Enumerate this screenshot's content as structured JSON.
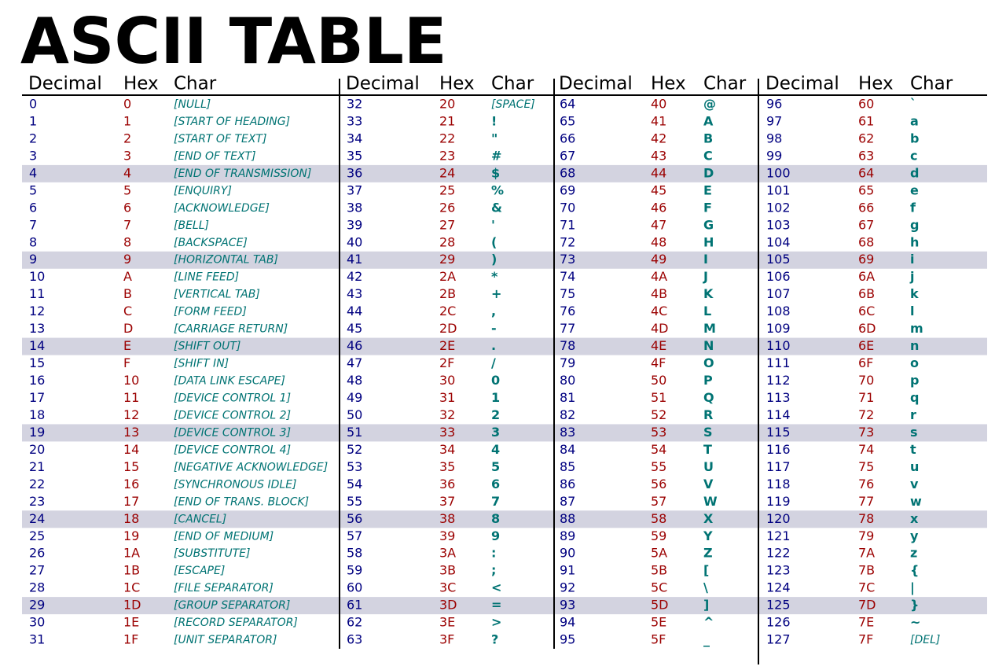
{
  "title": "ASCII TABLE",
  "groups": [
    {
      "headers": [
        "Decimal",
        "Hex",
        "Char"
      ],
      "rows": [
        [
          "0",
          "0",
          "[NULL]"
        ],
        [
          "1",
          "1",
          "[START OF HEADING]"
        ],
        [
          "2",
          "2",
          "[START OF TEXT]"
        ],
        [
          "3",
          "3",
          "[END OF TEXT]"
        ],
        [
          "4",
          "4",
          "[END OF TRANSMISSION]"
        ],
        [
          "5",
          "5",
          "[ENQUIRY]"
        ],
        [
          "6",
          "6",
          "[ACKNOWLEDGE]"
        ],
        [
          "7",
          "7",
          "[BELL]"
        ],
        [
          "8",
          "8",
          "[BACKSPACE]"
        ],
        [
          "9",
          "9",
          "[HORIZONTAL TAB]"
        ],
        [
          "10",
          "A",
          "[LINE FEED]"
        ],
        [
          "11",
          "B",
          "[VERTICAL TAB]"
        ],
        [
          "12",
          "C",
          "[FORM FEED]"
        ],
        [
          "13",
          "D",
          "[CARRIAGE RETURN]"
        ],
        [
          "14",
          "E",
          "[SHIFT OUT]"
        ],
        [
          "15",
          "F",
          "[SHIFT IN]"
        ],
        [
          "16",
          "10",
          "[DATA LINK ESCAPE]"
        ],
        [
          "17",
          "11",
          "[DEVICE CONTROL 1]"
        ],
        [
          "18",
          "12",
          "[DEVICE CONTROL 2]"
        ],
        [
          "19",
          "13",
          "[DEVICE CONTROL 3]"
        ],
        [
          "20",
          "14",
          "[DEVICE CONTROL 4]"
        ],
        [
          "21",
          "15",
          "[NEGATIVE ACKNOWLEDGE]"
        ],
        [
          "22",
          "16",
          "[SYNCHRONOUS IDLE]"
        ],
        [
          "23",
          "17",
          "[END OF TRANS. BLOCK]"
        ],
        [
          "24",
          "18",
          "[CANCEL]"
        ],
        [
          "25",
          "19",
          "[END OF MEDIUM]"
        ],
        [
          "26",
          "1A",
          "[SUBSTITUTE]"
        ],
        [
          "27",
          "1B",
          "[ESCAPE]"
        ],
        [
          "28",
          "1C",
          "[FILE SEPARATOR]"
        ],
        [
          "29",
          "1D",
          "[GROUP SEPARATOR]"
        ],
        [
          "30",
          "1E",
          "[RECORD SEPARATOR]"
        ],
        [
          "31",
          "1F",
          "[UNIT SEPARATOR]"
        ]
      ]
    },
    {
      "headers": [
        "Decimal",
        "Hex",
        "Char"
      ],
      "rows": [
        [
          "32",
          "20",
          "[SPACE]"
        ],
        [
          "33",
          "21",
          "!"
        ],
        [
          "34",
          "22",
          "\""
        ],
        [
          "35",
          "23",
          "#"
        ],
        [
          "36",
          "24",
          "$"
        ],
        [
          "37",
          "25",
          "%"
        ],
        [
          "38",
          "26",
          "&"
        ],
        [
          "39",
          "27",
          "'"
        ],
        [
          "40",
          "28",
          "("
        ],
        [
          "41",
          "29",
          ")"
        ],
        [
          "42",
          "2A",
          "*"
        ],
        [
          "43",
          "2B",
          "+"
        ],
        [
          "44",
          "2C",
          ","
        ],
        [
          "45",
          "2D",
          "-"
        ],
        [
          "46",
          "2E",
          "."
        ],
        [
          "47",
          "2F",
          "/"
        ],
        [
          "48",
          "30",
          "0"
        ],
        [
          "49",
          "31",
          "1"
        ],
        [
          "50",
          "32",
          "2"
        ],
        [
          "51",
          "33",
          "3"
        ],
        [
          "52",
          "34",
          "4"
        ],
        [
          "53",
          "35",
          "5"
        ],
        [
          "54",
          "36",
          "6"
        ],
        [
          "55",
          "37",
          "7"
        ],
        [
          "56",
          "38",
          "8"
        ],
        [
          "57",
          "39",
          "9"
        ],
        [
          "58",
          "3A",
          ":"
        ],
        [
          "59",
          "3B",
          ";"
        ],
        [
          "60",
          "3C",
          "<"
        ],
        [
          "61",
          "3D",
          "="
        ],
        [
          "62",
          "3E",
          ">"
        ],
        [
          "63",
          "3F",
          "?"
        ]
      ]
    },
    {
      "headers": [
        "Decimal",
        "Hex",
        "Char"
      ],
      "rows": [
        [
          "64",
          "40",
          "@"
        ],
        [
          "65",
          "41",
          "A"
        ],
        [
          "66",
          "42",
          "B"
        ],
        [
          "67",
          "43",
          "C"
        ],
        [
          "68",
          "44",
          "D"
        ],
        [
          "69",
          "45",
          "E"
        ],
        [
          "70",
          "46",
          "F"
        ],
        [
          "71",
          "47",
          "G"
        ],
        [
          "72",
          "48",
          "H"
        ],
        [
          "73",
          "49",
          "I"
        ],
        [
          "74",
          "4A",
          "J"
        ],
        [
          "75",
          "4B",
          "K"
        ],
        [
          "76",
          "4C",
          "L"
        ],
        [
          "77",
          "4D",
          "M"
        ],
        [
          "78",
          "4E",
          "N"
        ],
        [
          "79",
          "4F",
          "O"
        ],
        [
          "80",
          "50",
          "P"
        ],
        [
          "81",
          "51",
          "Q"
        ],
        [
          "82",
          "52",
          "R"
        ],
        [
          "83",
          "53",
          "S"
        ],
        [
          "84",
          "54",
          "T"
        ],
        [
          "85",
          "55",
          "U"
        ],
        [
          "86",
          "56",
          "V"
        ],
        [
          "87",
          "57",
          "W"
        ],
        [
          "88",
          "58",
          "X"
        ],
        [
          "89",
          "59",
          "Y"
        ],
        [
          "90",
          "5A",
          "Z"
        ],
        [
          "91",
          "5B",
          "["
        ],
        [
          "92",
          "5C",
          "\\"
        ],
        [
          "93",
          "5D",
          "]"
        ],
        [
          "94",
          "5E",
          "^"
        ],
        [
          "95",
          "5F",
          "_"
        ]
      ]
    },
    {
      "headers": [
        "Decimal",
        "Hex",
        "Char"
      ],
      "rows": [
        [
          "96",
          "60",
          "`"
        ],
        [
          "97",
          "61",
          "a"
        ],
        [
          "98",
          "62",
          "b"
        ],
        [
          "99",
          "63",
          "c"
        ],
        [
          "100",
          "64",
          "d"
        ],
        [
          "101",
          "65",
          "e"
        ],
        [
          "102",
          "66",
          "f"
        ],
        [
          "103",
          "67",
          "g"
        ],
        [
          "104",
          "68",
          "h"
        ],
        [
          "105",
          "69",
          "i"
        ],
        [
          "106",
          "6A",
          "j"
        ],
        [
          "107",
          "6B",
          "k"
        ],
        [
          "108",
          "6C",
          "l"
        ],
        [
          "109",
          "6D",
          "m"
        ],
        [
          "110",
          "6E",
          "n"
        ],
        [
          "111",
          "6F",
          "o"
        ],
        [
          "112",
          "70",
          "p"
        ],
        [
          "113",
          "71",
          "q"
        ],
        [
          "114",
          "72",
          "r"
        ],
        [
          "115",
          "73",
          "s"
        ],
        [
          "116",
          "74",
          "t"
        ],
        [
          "117",
          "75",
          "u"
        ],
        [
          "118",
          "76",
          "v"
        ],
        [
          "119",
          "77",
          "w"
        ],
        [
          "120",
          "78",
          "x"
        ],
        [
          "121",
          "79",
          "y"
        ],
        [
          "122",
          "7A",
          "z"
        ],
        [
          "123",
          "7B",
          "{"
        ],
        [
          "124",
          "7C",
          "|"
        ],
        [
          "125",
          "7D",
          "}"
        ],
        [
          "126",
          "7E",
          "~"
        ],
        [
          "127",
          "7F",
          "[DEL]"
        ]
      ]
    }
  ]
}
